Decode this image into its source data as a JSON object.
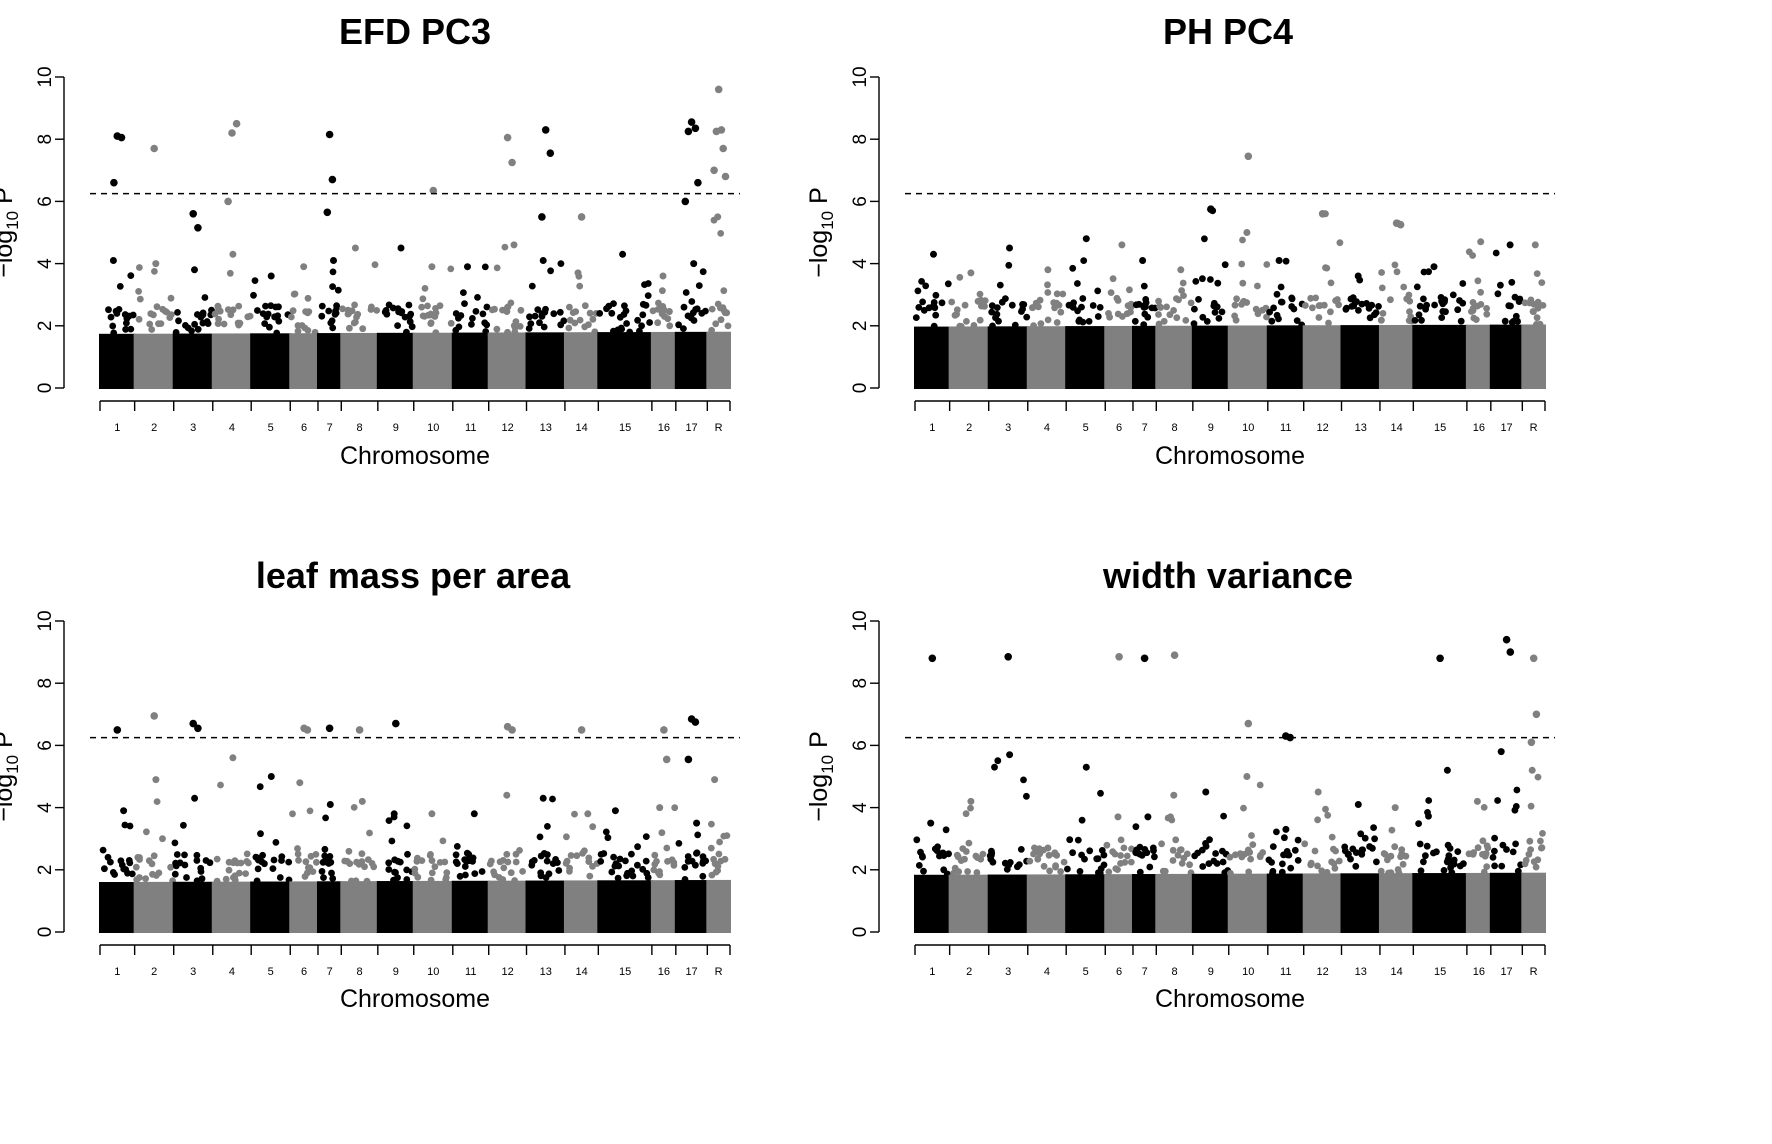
{
  "chart_data": [
    {
      "type": "scatter",
      "title": "EFD PC3",
      "xlabel": "Chromosome",
      "ylabel": "−log10 P",
      "ylim": [
        0,
        10
      ],
      "yticks": [
        0,
        2,
        4,
        6,
        8,
        10
      ],
      "threshold": 6.25,
      "chromosomes": [
        "1",
        "2",
        "3",
        "4",
        "5",
        "6",
        "7",
        "8",
        "9",
        "10",
        "11",
        "12",
        "13",
        "14",
        "15",
        "16",
        "17",
        "R"
      ],
      "background_peak": [
        4.1,
        4.0,
        3.8,
        4.3,
        3.6,
        3.9,
        4.1,
        4.5,
        4.5,
        3.9,
        3.9,
        4.6,
        4.1,
        3.7,
        4.3,
        3.6,
        4.0,
        5.5
      ],
      "points": [
        {
          "chr": "1",
          "y": 8.1
        },
        {
          "chr": "1",
          "y": 8.05
        },
        {
          "chr": "1",
          "y": 6.6
        },
        {
          "chr": "2",
          "y": 7.7
        },
        {
          "chr": "3",
          "y": 5.6
        },
        {
          "chr": "3",
          "y": 5.15
        },
        {
          "chr": "4",
          "y": 8.2
        },
        {
          "chr": "4",
          "y": 8.5
        },
        {
          "chr": "4",
          "y": 6.0
        },
        {
          "chr": "7",
          "y": 8.15
        },
        {
          "chr": "7",
          "y": 6.7
        },
        {
          "chr": "7",
          "y": 5.65
        },
        {
          "chr": "10",
          "y": 6.35
        },
        {
          "chr": "12",
          "y": 8.05
        },
        {
          "chr": "12",
          "y": 7.25
        },
        {
          "chr": "13",
          "y": 8.3
        },
        {
          "chr": "13",
          "y": 7.55
        },
        {
          "chr": "13",
          "y": 5.5
        },
        {
          "chr": "14",
          "y": 5.5
        },
        {
          "chr": "17",
          "y": 8.55
        },
        {
          "chr": "17",
          "y": 8.35
        },
        {
          "chr": "17",
          "y": 8.25
        },
        {
          "chr": "17",
          "y": 6.6
        },
        {
          "chr": "17",
          "y": 6.0
        },
        {
          "chr": "R",
          "y": 9.6
        },
        {
          "chr": "R",
          "y": 8.3
        },
        {
          "chr": "R",
          "y": 8.25
        },
        {
          "chr": "R",
          "y": 7.7
        },
        {
          "chr": "R",
          "y": 7.0
        },
        {
          "chr": "R",
          "y": 6.8
        }
      ]
    },
    {
      "type": "scatter",
      "title": "PH PC4",
      "xlabel": "Chromosome",
      "ylabel": "−log10 P",
      "ylim": [
        0,
        10
      ],
      "yticks": [
        0,
        2,
        4,
        6,
        8,
        10
      ],
      "threshold": 6.25,
      "chromosomes": [
        "1",
        "2",
        "3",
        "4",
        "5",
        "6",
        "7",
        "8",
        "9",
        "10",
        "11",
        "12",
        "13",
        "14",
        "15",
        "16",
        "17",
        "R"
      ],
      "background_peak": [
        4.3,
        3.7,
        4.5,
        3.8,
        4.8,
        4.6,
        4.1,
        3.8,
        5.7,
        5.0,
        4.1,
        5.6,
        3.6,
        5.3,
        3.9,
        4.7,
        4.6,
        4.6
      ],
      "points": [
        {
          "chr": "10",
          "y": 7.45
        },
        {
          "chr": "9",
          "y": 5.75
        },
        {
          "chr": "12",
          "y": 5.6
        },
        {
          "chr": "14",
          "y": 5.3
        },
        {
          "chr": "14",
          "y": 5.25
        }
      ]
    },
    {
      "type": "scatter",
      "title": "leaf mass per area",
      "xlabel": "Chromosome",
      "ylabel": "−log10 P",
      "ylim": [
        0,
        10
      ],
      "yticks": [
        0,
        2,
        4,
        6,
        8,
        10
      ],
      "threshold": 6.25,
      "chromosomes": [
        "1",
        "2",
        "3",
        "4",
        "5",
        "6",
        "7",
        "8",
        "9",
        "10",
        "11",
        "12",
        "13",
        "14",
        "15",
        "16",
        "17",
        "R"
      ],
      "background_peak": [
        3.9,
        4.9,
        4.3,
        5.6,
        5.0,
        4.8,
        4.1,
        4.2,
        3.8,
        3.8,
        3.8,
        4.4,
        4.3,
        3.8,
        3.9,
        4.0,
        3.5,
        4.9
      ],
      "points": [
        {
          "chr": "1",
          "y": 6.5
        },
        {
          "chr": "2",
          "y": 6.95
        },
        {
          "chr": "3",
          "y": 6.7
        },
        {
          "chr": "3",
          "y": 6.55
        },
        {
          "chr": "6",
          "y": 6.55
        },
        {
          "chr": "6",
          "y": 6.5
        },
        {
          "chr": "7",
          "y": 6.55
        },
        {
          "chr": "8",
          "y": 6.5
        },
        {
          "chr": "9",
          "y": 6.7
        },
        {
          "chr": "12",
          "y": 6.6
        },
        {
          "chr": "12",
          "y": 6.5
        },
        {
          "chr": "14",
          "y": 6.5
        },
        {
          "chr": "16",
          "y": 6.5
        },
        {
          "chr": "16",
          "y": 5.55
        },
        {
          "chr": "17",
          "y": 6.85
        },
        {
          "chr": "17",
          "y": 6.75
        },
        {
          "chr": "17",
          "y": 5.55
        }
      ]
    },
    {
      "type": "scatter",
      "title": "width variance",
      "xlabel": "Chromosome",
      "ylabel": "−log10 P",
      "ylim": [
        0,
        10
      ],
      "yticks": [
        0,
        2,
        4,
        6,
        8,
        10
      ],
      "threshold": 6.25,
      "chromosomes": [
        "1",
        "2",
        "3",
        "4",
        "5",
        "6",
        "7",
        "8",
        "9",
        "10",
        "11",
        "12",
        "13",
        "14",
        "15",
        "16",
        "17",
        "R"
      ],
      "background_peak": [
        3.5,
        4.2,
        5.7,
        2.7,
        5.3,
        3.7,
        3.7,
        4.4,
        4.5,
        5.0,
        3.3,
        4.5,
        4.1,
        4.0,
        5.2,
        4.2,
        5.8,
        5.2
      ],
      "points": [
        {
          "chr": "1",
          "y": 8.8
        },
        {
          "chr": "3",
          "y": 8.85
        },
        {
          "chr": "6",
          "y": 8.85
        },
        {
          "chr": "7",
          "y": 8.8
        },
        {
          "chr": "8",
          "y": 8.9
        },
        {
          "chr": "10",
          "y": 6.7
        },
        {
          "chr": "11",
          "y": 6.3
        },
        {
          "chr": "11",
          "y": 6.25
        },
        {
          "chr": "15",
          "y": 8.8
        },
        {
          "chr": "17",
          "y": 9.4
        },
        {
          "chr": "17",
          "y": 9.0
        },
        {
          "chr": "R",
          "y": 8.8
        },
        {
          "chr": "R",
          "y": 7.0
        },
        {
          "chr": "R",
          "y": 6.1
        }
      ]
    }
  ]
}
